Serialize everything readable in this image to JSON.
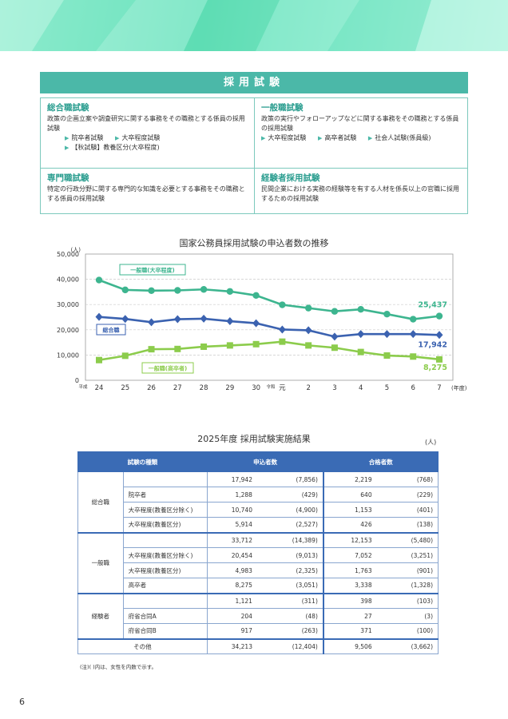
{
  "colors": {
    "teal": "#4bb8a8",
    "navy": "#3a6bb5",
    "general_uni": "#3db58f",
    "comprehensive": "#3b62b0",
    "general_hs": "#8ccc4c"
  },
  "section": {
    "title": "採用試験"
  },
  "exams": [
    {
      "title": "総合職試験",
      "desc": "政策の企画立案や調査研究に関する事務をその職務とする係員の採用試験",
      "subs": [
        "院卒者試験",
        "大卒程度試験",
        "【秋試験】教養区分(大卒程度)"
      ]
    },
    {
      "title": "一般職試験",
      "desc": "政策の実行やフォローアップなどに関する事務をその職務とする係員の採用試験",
      "subs": [
        "大卒程度試験",
        "高卒者試験",
        "社会人試験(係員級)"
      ]
    },
    {
      "title": "専門職試験",
      "desc": "特定の行政分野に関する専門的な知識を必要とする事務をその職務とする係員の採用試験",
      "subs": []
    },
    {
      "title": "経験者採用試験",
      "desc": "民間企業における実務の経験等を有する人材を係長以上の官職に採用するための採用試験",
      "subs": []
    }
  ],
  "chart_title": "国家公務員採用試験の申込者数の推移",
  "chart_data": {
    "type": "line",
    "title": "国家公務員採用試験の申込者数の推移",
    "ylabel": "(人)",
    "xlabel": "(年度)",
    "era_labels": [
      "平成",
      "令和"
    ],
    "categories": [
      "24",
      "25",
      "26",
      "27",
      "28",
      "29",
      "30",
      "元",
      "2",
      "3",
      "4",
      "5",
      "6",
      "7"
    ],
    "ylim": [
      0,
      50000
    ],
    "yticks": [
      "0",
      "10,000",
      "20,000",
      "30,000",
      "40,000",
      "50,000"
    ],
    "grid": true,
    "series": [
      {
        "name": "一般職(大卒程度)",
        "marker": "circle",
        "color": "#3db58f",
        "values": [
          39700,
          35800,
          35500,
          35600,
          36000,
          35200,
          33600,
          29900,
          28600,
          27300,
          28100,
          26200,
          24200,
          25437
        ],
        "end_label": "25,437"
      },
      {
        "name": "総合職",
        "marker": "diamond",
        "color": "#3b62b0",
        "values": [
          25100,
          24300,
          23000,
          24200,
          24400,
          23400,
          22600,
          20100,
          19800,
          17300,
          18300,
          18300,
          18300,
          17942
        ],
        "end_label": "17,942"
      },
      {
        "name": "一般職(高卒者)",
        "marker": "square",
        "color": "#8ccc4c",
        "values": [
          8000,
          9700,
          12300,
          12400,
          13300,
          13800,
          14300,
          15300,
          13800,
          12900,
          11200,
          9800,
          9400,
          8275
        ],
        "end_label": "8,275"
      }
    ]
  },
  "table": {
    "title": "2025年度 採用試験実施結果",
    "unit": "(人)",
    "headers": [
      "試験の種類",
      "申込者数",
      "合格者数"
    ],
    "groups": [
      {
        "category": "総合職",
        "rows": [
          {
            "sub": "",
            "app": "17,942",
            "app_w": "(7,856)",
            "pass": "2,219",
            "pass_w": "(768)"
          },
          {
            "sub": "院卒者",
            "app": "1,288",
            "app_w": "(429)",
            "pass": "640",
            "pass_w": "(229)"
          },
          {
            "sub": "大卒程度(教養区分除く)",
            "app": "10,740",
            "app_w": "(4,900)",
            "pass": "1,153",
            "pass_w": "(401)"
          },
          {
            "sub": "大卒程度(教養区分)",
            "app": "5,914",
            "app_w": "(2,527)",
            "pass": "426",
            "pass_w": "(138)"
          }
        ]
      },
      {
        "category": "一般職",
        "rows": [
          {
            "sub": "",
            "app": "33,712",
            "app_w": "(14,389)",
            "pass": "12,153",
            "pass_w": "(5,480)"
          },
          {
            "sub": "大卒程度(教養区分除く)",
            "app": "20,454",
            "app_w": "(9,013)",
            "pass": "7,052",
            "pass_w": "(3,251)"
          },
          {
            "sub": "大卒程度(教養区分)",
            "app": "4,983",
            "app_w": "(2,325)",
            "pass": "1,763",
            "pass_w": "(901)"
          },
          {
            "sub": "高卒者",
            "app": "8,275",
            "app_w": "(3,051)",
            "pass": "3,338",
            "pass_w": "(1,328)"
          }
        ]
      },
      {
        "category": "経験者",
        "rows": [
          {
            "sub": "",
            "app": "1,121",
            "app_w": "(311)",
            "pass": "398",
            "pass_w": "(103)"
          },
          {
            "sub": "府省合同A",
            "app": "204",
            "app_w": "(48)",
            "pass": "27",
            "pass_w": "(3)"
          },
          {
            "sub": "府省合同B",
            "app": "917",
            "app_w": "(263)",
            "pass": "371",
            "pass_w": "(100)"
          }
        ]
      }
    ],
    "other": {
      "category": "その他",
      "app": "34,213",
      "app_w": "(12,404)",
      "pass": "9,506",
      "pass_w": "(3,662)"
    }
  },
  "note": "(注)( )内は、女性を内数で示す。",
  "page_number": "6"
}
